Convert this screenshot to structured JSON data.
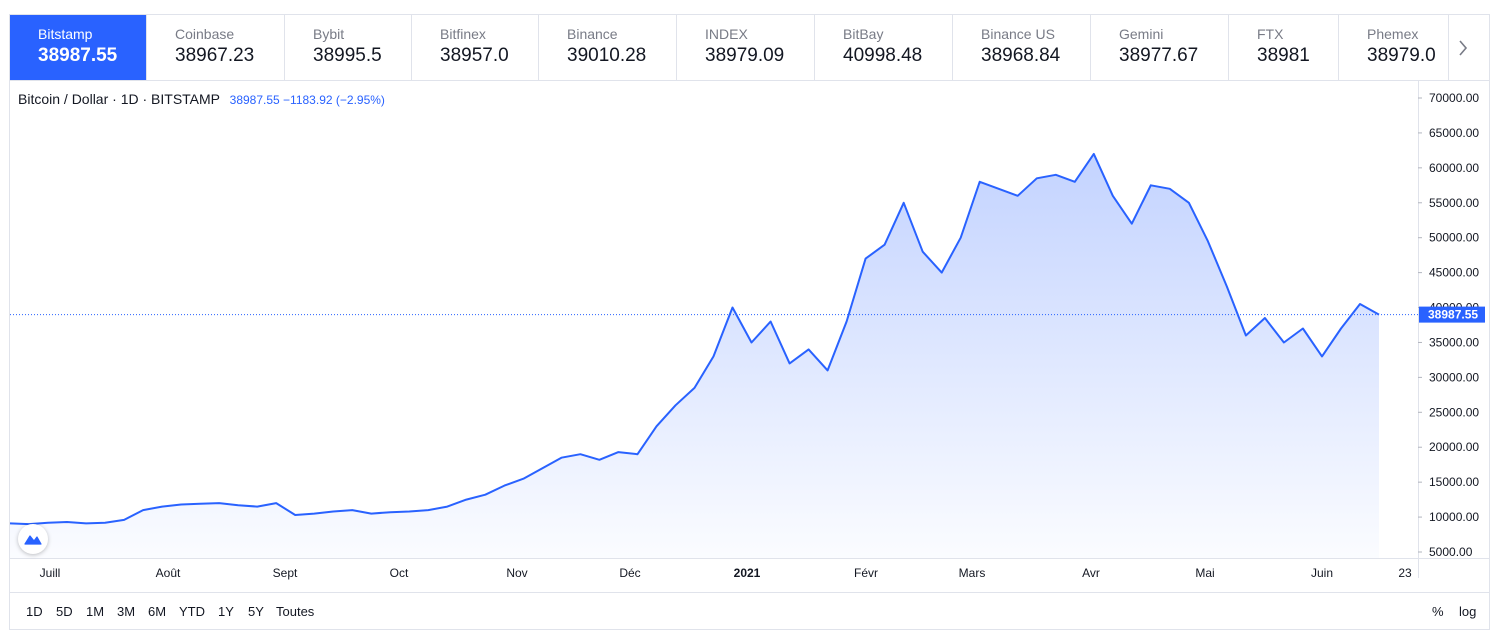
{
  "tabs": [
    {
      "exchange": "Bitstamp",
      "price": "38987.55",
      "active": true
    },
    {
      "exchange": "Coinbase",
      "price": "38967.23"
    },
    {
      "exchange": "Bybit",
      "price": "38995.5"
    },
    {
      "exchange": "Bitfinex",
      "price": "38957.0"
    },
    {
      "exchange": "Binance",
      "price": "39010.28"
    },
    {
      "exchange": "INDEX",
      "price": "38979.09"
    },
    {
      "exchange": "BitBay",
      "price": "40998.48"
    },
    {
      "exchange": "Binance US",
      "price": "38968.84"
    },
    {
      "exchange": "Gemini",
      "price": "38977.67"
    },
    {
      "exchange": "FTX",
      "price": "38981"
    },
    {
      "exchange": "Phemex",
      "price": "38979.0"
    }
  ],
  "more_icon": "chevron-right-icon",
  "legend": {
    "symbol": "Bitcoin / Dollar · 1D · BITSTAMP",
    "price": "38987.55",
    "change": "−1183.92",
    "change_pct": "(−2.95%)"
  },
  "ranges": [
    "1D",
    "5D",
    "1M",
    "3M",
    "6M",
    "YTD",
    "1Y",
    "5Y",
    "Toutes"
  ],
  "toggles": {
    "percent": "%",
    "log": "log"
  },
  "colors": {
    "accent": "#2962ff",
    "line": "#2962ff"
  },
  "chart_data": {
    "type": "area",
    "symbol": "Bitcoin / Dollar",
    "interval": "1D",
    "exchange": "BITSTAMP",
    "last_price": 38987.55,
    "last_label": "38987.55",
    "ylim": [
      5000,
      70000
    ],
    "yticks": [
      "70000.00",
      "65000.00",
      "60000.00",
      "55000.00",
      "50000.00",
      "45000.00",
      "40000.00",
      "35000.00",
      "30000.00",
      "25000.00",
      "20000.00",
      "15000.00",
      "10000.00",
      "5000.00"
    ],
    "xticks": [
      "Juill",
      "Août",
      "Sept",
      "Oct",
      "Nov",
      "Déc",
      "2021",
      "Févr",
      "Mars",
      "Avr",
      "Mai",
      "Juin",
      "23"
    ],
    "grid": false,
    "series": [
      {
        "x": [
          0,
          5,
          10,
          15,
          20,
          25,
          30,
          35,
          40,
          45,
          50,
          55,
          60,
          65,
          70,
          75,
          80,
          85,
          90,
          95,
          100,
          105,
          110,
          115,
          120,
          125,
          130,
          135,
          140,
          145,
          150,
          155,
          160,
          165,
          170,
          175,
          180,
          185,
          190,
          195,
          200,
          205,
          210,
          215,
          220,
          225,
          230,
          235,
          240,
          245,
          250,
          255,
          260,
          265,
          270,
          275,
          280,
          285,
          290,
          295,
          300,
          305,
          310,
          315,
          320,
          325,
          330,
          335,
          340,
          345,
          350,
          355,
          360
        ],
        "values": [
          9100,
          9000,
          9200,
          9300,
          9100,
          9200,
          9600,
          11000,
          11500,
          11800,
          11900,
          12000,
          11700,
          11500,
          12000,
          10300,
          10500,
          10800,
          11000,
          10500,
          10700,
          10800,
          11000,
          11500,
          12500,
          13200,
          14500,
          15500,
          17000,
          18500,
          19000,
          18200,
          19300,
          19000,
          23000,
          26000,
          28500,
          33000,
          40000,
          35000,
          38000,
          32000,
          34000,
          31000,
          38000,
          47000,
          49000,
          55000,
          48000,
          45000,
          50000,
          58000,
          57000,
          56000,
          58500,
          59000,
          58000,
          62000,
          56000,
          52000,
          57500,
          57000,
          55000,
          49500,
          43000,
          36000,
          38500,
          35000,
          37000,
          33000,
          37000,
          40500,
          38987.55
        ]
      }
    ]
  }
}
